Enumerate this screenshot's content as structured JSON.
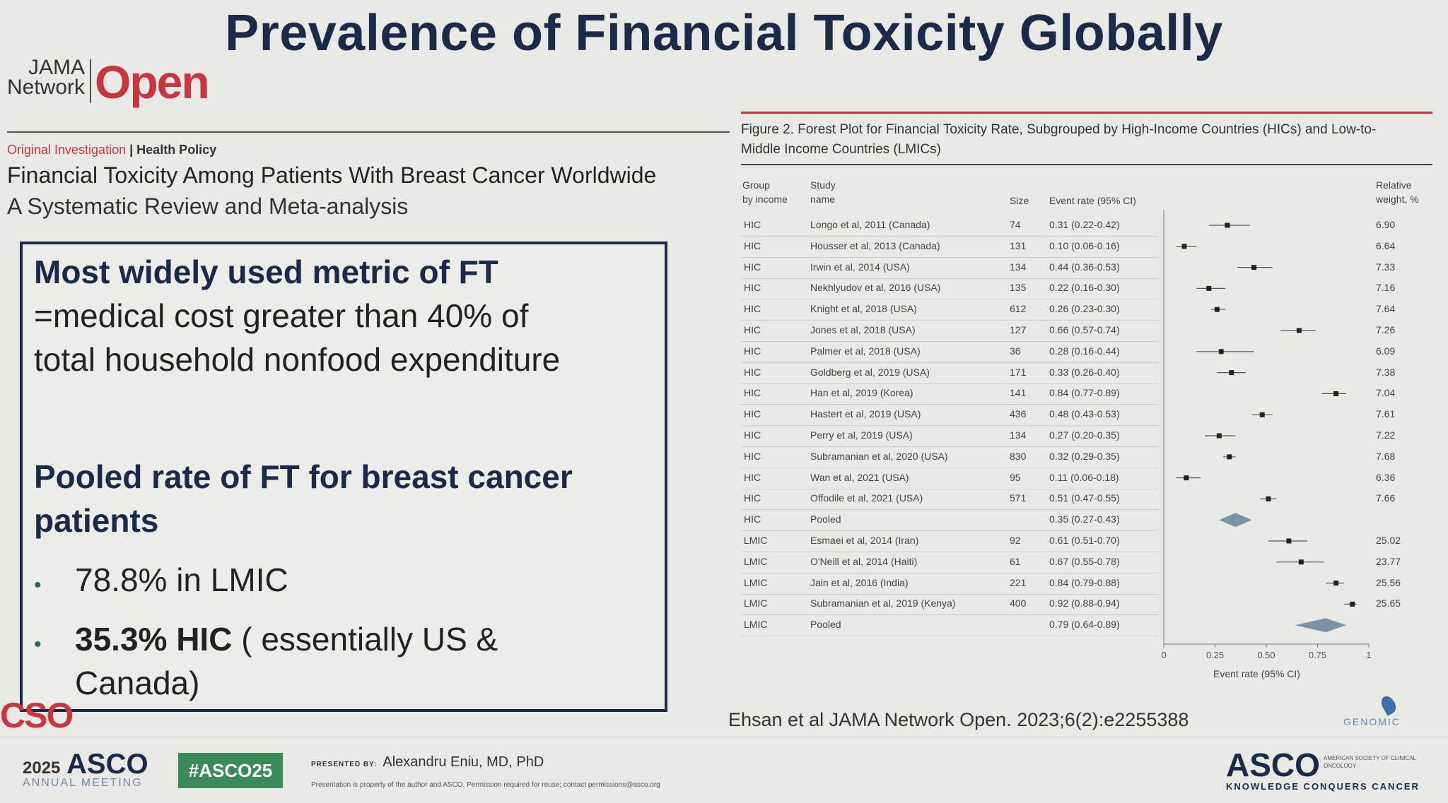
{
  "slide": {
    "title": "Prevalence of Financial Toxicity Globally"
  },
  "journal": {
    "brand_network": "JAMA\nNetwork",
    "brand_open": "Open",
    "article_type": "Original Investigation",
    "separator": "|",
    "category": "Health Policy",
    "article_title": "Financial Toxicity Among Patients With Breast Cancer Worldwide",
    "article_subtitle": "A Systematic Review and Meta-analysis"
  },
  "summary": {
    "heading1": "Most widely used metric of FT",
    "line1": "=medical cost greater than 40% of",
    "line2": "total household nonfood expenditure",
    "heading2_line1": "Pooled rate of FT for breast cancer",
    "heading2_line2": "patients",
    "bullet1": "78.8% in LMIC",
    "bullet2_bold": "35.3%   HIC",
    "bullet2_rest": " ( essentially US &",
    "bullet2_line2": "Canada)",
    "bullet_marker": "•"
  },
  "figure": {
    "caption": "Figure 2. Forest Plot for Financial Toxicity Rate, Subgrouped by High-Income Countries (HICs) and Low-to-Middle Income Countries (LMICs)",
    "col_group": "Group\nby income",
    "col_study": "Study\nname",
    "col_size": "Size",
    "col_rate": "Event rate (95% CI)",
    "col_weight": "Relative\nweight, %",
    "x_label": "Event rate (95% CI)",
    "rows": [
      {
        "group": "HIC",
        "study": "Longo et al, 2011 (Canada)",
        "size": "74",
        "rate": 0.31,
        "lo": 0.22,
        "hi": 0.42,
        "ci": "0.31 (0.22-0.42)",
        "weight": "6.90"
      },
      {
        "group": "HIC",
        "study": "Housser et al, 2013 (Canada)",
        "size": "131",
        "rate": 0.1,
        "lo": 0.06,
        "hi": 0.16,
        "ci": "0.10 (0.06-0.16)",
        "weight": "6.64"
      },
      {
        "group": "HIC",
        "study": "Irwin et al, 2014 (USA)",
        "size": "134",
        "rate": 0.44,
        "lo": 0.36,
        "hi": 0.53,
        "ci": "0.44 (0.36-0.53)",
        "weight": "7.33"
      },
      {
        "group": "HIC",
        "study": "Nekhlyudov et al, 2016 (USA)",
        "size": "135",
        "rate": 0.22,
        "lo": 0.16,
        "hi": 0.3,
        "ci": "0.22 (0.16-0.30)",
        "weight": "7.16"
      },
      {
        "group": "HIC",
        "study": "Knight et al, 2018 (USA)",
        "size": "612",
        "rate": 0.26,
        "lo": 0.23,
        "hi": 0.3,
        "ci": "0.26 (0.23-0.30)",
        "weight": "7.64"
      },
      {
        "group": "HIC",
        "study": "Jones et al, 2018 (USA)",
        "size": "127",
        "rate": 0.66,
        "lo": 0.57,
        "hi": 0.74,
        "ci": "0.66 (0.57-0.74)",
        "weight": "7.26"
      },
      {
        "group": "HIC",
        "study": "Palmer et al, 2018 (USA)",
        "size": "36",
        "rate": 0.28,
        "lo": 0.16,
        "hi": 0.44,
        "ci": "0.28 (0.16-0.44)",
        "weight": "6.09"
      },
      {
        "group": "HIC",
        "study": "Goldberg et al, 2019 (USA)",
        "size": "171",
        "rate": 0.33,
        "lo": 0.26,
        "hi": 0.4,
        "ci": "0.33 (0.26-0.40)",
        "weight": "7.38"
      },
      {
        "group": "HIC",
        "study": "Han et al, 2019 (Korea)",
        "size": "141",
        "rate": 0.84,
        "lo": 0.77,
        "hi": 0.89,
        "ci": "0.84 (0.77-0.89)",
        "weight": "7.04"
      },
      {
        "group": "HIC",
        "study": "Hastert et al, 2019 (USA)",
        "size": "436",
        "rate": 0.48,
        "lo": 0.43,
        "hi": 0.53,
        "ci": "0.48 (0.43-0.53)",
        "weight": "7.61"
      },
      {
        "group": "HIC",
        "study": "Perry et al, 2019 (USA)",
        "size": "134",
        "rate": 0.27,
        "lo": 0.2,
        "hi": 0.35,
        "ci": "0.27 (0.20-0.35)",
        "weight": "7.22"
      },
      {
        "group": "HIC",
        "study": "Subramanian et al, 2020 (USA)",
        "size": "830",
        "rate": 0.32,
        "lo": 0.29,
        "hi": 0.35,
        "ci": "0.32 (0.29-0.35)",
        "weight": "7.68"
      },
      {
        "group": "HIC",
        "study": "Wan et al, 2021 (USA)",
        "size": "95",
        "rate": 0.11,
        "lo": 0.06,
        "hi": 0.18,
        "ci": "0.11 (0.06-0.18)",
        "weight": "6.36"
      },
      {
        "group": "HIC",
        "study": "Offodile et al, 2021 (USA)",
        "size": "571",
        "rate": 0.51,
        "lo": 0.47,
        "hi": 0.55,
        "ci": "0.51 (0.47-0.55)",
        "weight": "7.66"
      },
      {
        "group": "HIC",
        "study": "Pooled",
        "size": "",
        "rate": 0.35,
        "lo": 0.27,
        "hi": 0.43,
        "ci": "0.35 (0.27-0.43)",
        "weight": "",
        "pooled": true
      },
      {
        "group": "LMIC",
        "study": "Esmaei et al, 2014 (Iran)",
        "size": "92",
        "rate": 0.61,
        "lo": 0.51,
        "hi": 0.7,
        "ci": "0.61 (0.51-0.70)",
        "weight": "25.02"
      },
      {
        "group": "LMIC",
        "study": "O'Neill et al, 2014 (Haiti)",
        "size": "61",
        "rate": 0.67,
        "lo": 0.55,
        "hi": 0.78,
        "ci": "0.67 (0.55-0.78)",
        "weight": "23.77"
      },
      {
        "group": "LMIC",
        "study": "Jain et al, 2016 (India)",
        "size": "221",
        "rate": 0.84,
        "lo": 0.79,
        "hi": 0.88,
        "ci": "0.84 (0.79-0.88)",
        "weight": "25.56"
      },
      {
        "group": "LMIC",
        "study": "Subramanian et al, 2019 (Kenya)",
        "size": "400",
        "rate": 0.92,
        "lo": 0.88,
        "hi": 0.94,
        "ci": "0.92 (0.88-0.94)",
        "weight": "25.65"
      },
      {
        "group": "LMIC",
        "study": "Pooled",
        "size": "",
        "rate": 0.79,
        "lo": 0.64,
        "hi": 0.89,
        "ci": "0.79 (0.64-0.89)",
        "weight": "",
        "pooled": true
      }
    ],
    "x_ticks": [
      "0",
      "0.25",
      "0.50",
      "0.75",
      "1"
    ],
    "x_tick_values": [
      0,
      0.25,
      0.5,
      0.75,
      1
    ]
  },
  "citation": "Ehsan et al JAMA Network Open. 2023;6(2):e2255388",
  "footer": {
    "cso": "CSO",
    "asco_year": "2025",
    "asco_word": "ASCO",
    "asco_sub": "ANNUAL MEETING",
    "hashtag": "#ASCO25",
    "presented_prefix": "PRESENTED BY:",
    "presenter": "Alexandru Eniu, MD, PhD",
    "permission": "Presentation is property of the author and ASCO. Permission required for reuse; contact permissions@asco.org",
    "asco_right": "ASCO",
    "asco_right_sub": "AMERICAN SOCIETY OF CLINICAL ONCOLOGY",
    "asco_right_tag": "KNOWLEDGE CONQUERS CANCER",
    "genomic_label": "GENOMIC"
  },
  "colors": {
    "navy": "#1b2a48",
    "red": "#c8363f",
    "green": "#3b8a5a",
    "pooled_diamond": "#7a94a6"
  }
}
